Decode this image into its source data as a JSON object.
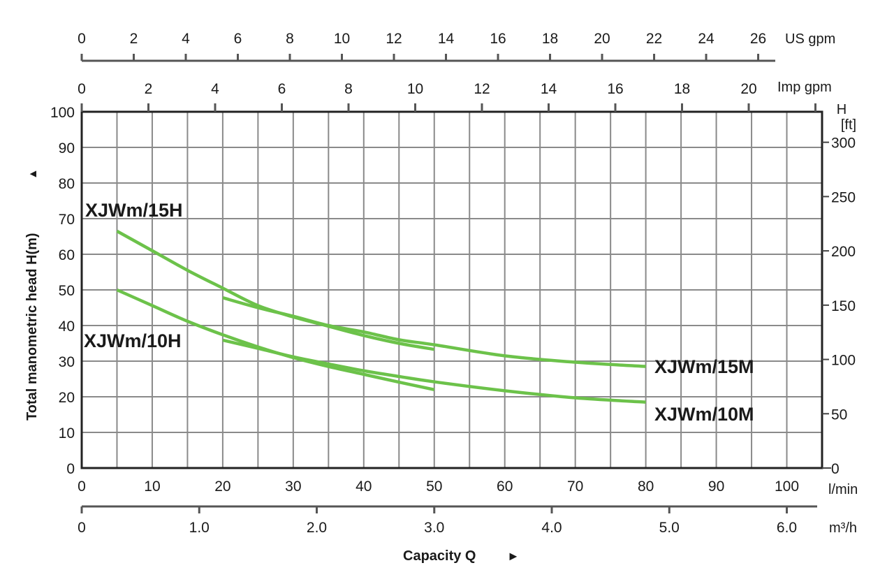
{
  "chart_data": {
    "type": "line",
    "title": "",
    "xlabel": "Capacity Q",
    "ylabel": "Total manometric head H(m)",
    "x_unit": "l/min",
    "xlim": [
      0,
      105
    ],
    "ylim": [
      0,
      100
    ],
    "x_ticks": [
      0,
      10,
      20,
      30,
      40,
      50,
      60,
      70,
      80,
      90,
      100
    ],
    "y_ticks": [
      0,
      10,
      20,
      30,
      40,
      50,
      60,
      70,
      80,
      90,
      100
    ],
    "grid": true,
    "grid_x_step": 5,
    "grid_y_step": 10,
    "secondary_axes": {
      "m3h": {
        "unit": "m³/h",
        "ticks": [
          "0",
          "1.0",
          "2.0",
          "3.0",
          "4.0",
          "5.0",
          "6.0"
        ]
      },
      "us_gpm": {
        "unit": "US gpm",
        "ticks": [
          0,
          2,
          4,
          6,
          8,
          10,
          12,
          14,
          16,
          18,
          20,
          22,
          24,
          26
        ]
      },
      "imp_gpm": {
        "unit": "Imp gpm",
        "ticks": [
          0,
          2,
          4,
          6,
          8,
          10,
          12,
          14,
          16,
          18,
          20
        ]
      },
      "h_ft": {
        "unit_line1": "H",
        "unit_line2": "[ft]",
        "ticks": [
          0,
          50,
          100,
          150,
          200,
          250,
          300
        ]
      }
    },
    "series_color": "#6cc24a",
    "series": [
      {
        "name": "XJWm/15H",
        "x": [
          5,
          10,
          15,
          20,
          25,
          30,
          35,
          40,
          45,
          50
        ],
        "y": [
          66.5,
          61,
          55.5,
          50.5,
          45.6,
          42.4,
          39.8,
          37.2,
          35,
          33.3
        ]
      },
      {
        "name": "XJWm/15M",
        "x": [
          20,
          25,
          30,
          35,
          40,
          45,
          50,
          60,
          70,
          80
        ],
        "y": [
          47.8,
          45,
          42.6,
          40,
          38.2,
          36,
          34.6,
          31.5,
          29.7,
          28.5
        ]
      },
      {
        "name": "XJWm/10H",
        "x": [
          5,
          10,
          15,
          20,
          25,
          30,
          35,
          40,
          45,
          50
        ],
        "y": [
          50,
          45.6,
          41.2,
          37.4,
          34,
          31,
          28.5,
          26.3,
          24.1,
          22
        ]
      },
      {
        "name": "XJWm/10M",
        "x": [
          20,
          25,
          30,
          35,
          40,
          45,
          50,
          60,
          70,
          80
        ],
        "y": [
          35.9,
          33.6,
          31.2,
          29.2,
          27.3,
          25.7,
          24.2,
          21.7,
          19.7,
          18.5
        ]
      }
    ],
    "labels": {
      "s15H": "XJWm/15H",
      "s10H": "XJWm/10H",
      "s15M": "XJWm/15M",
      "s10M": "XJWm/10M"
    },
    "arrow_glyph": "►",
    "arrow_up_glyph": "▲"
  }
}
